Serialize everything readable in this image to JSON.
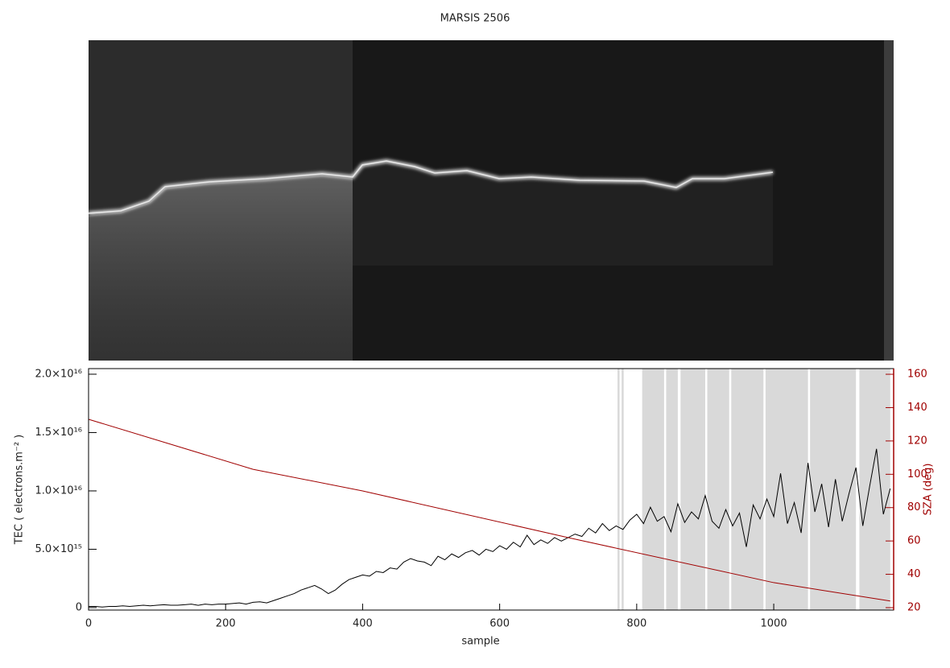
{
  "chart_data": {
    "type": "line",
    "title": "MARSIS 2506",
    "xlabel": "sample",
    "ylabel": "TEC ( electrons.m⁻² )",
    "y2label": "SZA (deg)",
    "xlim": [
      0,
      1175
    ],
    "xticks": [
      0,
      200,
      400,
      600,
      800,
      1000
    ],
    "ylim": [
      -210000000000000.0,
      2.048e+16
    ],
    "yticks": [
      0,
      {
        "value": 5000000000000000.0,
        "label": "5.0×10¹⁵"
      },
      {
        "value": 1e+16,
        "label": "1.0×10¹⁶"
      },
      {
        "value": 1.5e+16,
        "label": "1.5×10¹⁶"
      },
      {
        "value": 2e+16,
        "label": "2.0×10¹⁶"
      }
    ],
    "y2lim": [
      18.55,
      163.4
    ],
    "y2ticks": [
      20,
      40,
      60,
      80,
      100,
      120,
      140,
      160
    ],
    "shade_color": "#d9d9d9",
    "shaded_ranges": [
      [
        772,
        775
      ],
      [
        778,
        781
      ],
      [
        808,
        840
      ],
      [
        843,
        860
      ],
      [
        864,
        900
      ],
      [
        903,
        935
      ],
      [
        938,
        985
      ],
      [
        988,
        1050
      ],
      [
        1053,
        1120
      ],
      [
        1125,
        1170
      ]
    ],
    "series": [
      {
        "color": "#000000",
        "x": [
          0,
          10,
          20,
          30,
          40,
          50,
          60,
          70,
          80,
          90,
          100,
          110,
          120,
          130,
          140,
          150,
          160,
          170,
          180,
          190,
          200,
          210,
          220,
          230,
          240,
          250,
          260,
          270,
          280,
          290,
          300,
          310,
          320,
          330,
          340,
          350,
          360,
          370,
          380,
          390,
          400,
          410,
          420,
          430,
          440,
          450,
          460,
          470,
          480,
          490,
          500,
          510,
          520,
          530,
          540,
          550,
          560,
          570,
          580,
          590,
          600,
          610,
          620,
          630,
          640,
          650,
          660,
          670,
          680,
          690,
          700,
          710,
          720,
          730,
          740,
          750,
          760,
          770,
          780,
          790,
          800,
          810,
          820,
          830,
          840,
          850,
          860,
          870,
          880,
          890,
          900,
          910,
          920,
          930,
          940,
          950,
          960,
          970,
          980,
          990,
          1000,
          1010,
          1020,
          1030,
          1040,
          1050,
          1060,
          1070,
          1080,
          1090,
          1100,
          1110,
          1120,
          1130,
          1140,
          1150,
          1160,
          1170
        ],
        "values": [
          100000000000000.0,
          100000000000000.0,
          50000000000000.0,
          100000000000000.0,
          100000000000000.0,
          150000000000000.0,
          100000000000000.0,
          150000000000000.0,
          200000000000000.0,
          150000000000000.0,
          200000000000000.0,
          250000000000000.0,
          200000000000000.0,
          200000000000000.0,
          250000000000000.0,
          300000000000000.0,
          200000000000000.0,
          300000000000000.0,
          250000000000000.0,
          300000000000000.0,
          300000000000000.0,
          350000000000000.0,
          400000000000000.0,
          300000000000000.0,
          450000000000000.0,
          500000000000000.0,
          400000000000000.0,
          600000000000000.0,
          800000000000000.0,
          1000000000000000.0,
          1200000000000000.0,
          1500000000000000.0,
          1700000000000000.0,
          1900000000000000.0,
          1600000000000000.0,
          1200000000000000.0,
          1500000000000000.0,
          2000000000000000.0,
          2400000000000000.0,
          2600000000000000.0,
          2800000000000000.0,
          2700000000000000.0,
          3100000000000000.0,
          3000000000000000.0,
          3400000000000000.0,
          3300000000000000.0,
          3900000000000000.0,
          4200000000000000.0,
          4000000000000000.0,
          3900000000000000.0,
          3600000000000000.0,
          4400000000000000.0,
          4100000000000000.0,
          4600000000000000.0,
          4300000000000000.0,
          4700000000000000.0,
          4900000000000000.0,
          4500000000000000.0,
          5000000000000000.0,
          4800000000000000.0,
          5300000000000000.0,
          5000000000000000.0,
          5600000000000000.0,
          5200000000000000.0,
          6200000000000000.0,
          5400000000000000.0,
          5800000000000000.0,
          5500000000000000.0,
          6000000000000000.0,
          5700000000000000.0,
          6000000000000000.0,
          6300000000000000.0,
          6100000000000000.0,
          6800000000000000.0,
          6400000000000000.0,
          7200000000000000.0,
          6600000000000000.0,
          7000000000000000.0,
          6700000000000000.0,
          7500000000000000.0,
          8000000000000000.0,
          7200000000000000.0,
          8600000000000000.0,
          7400000000000000.0,
          7800000000000000.0,
          6500000000000000.0,
          8900000000000000.0,
          7300000000000000.0,
          8200000000000000.0,
          7600000000000000.0,
          9600000000000000.0,
          7400000000000000.0,
          6800000000000000.0,
          8400000000000000.0,
          7000000000000000.0,
          8100000000000000.0,
          5200000000000000.0,
          8800000000000000.0,
          7600000000000000.0,
          9300000000000000.0,
          7800000000000000.0,
          1.15e+16,
          7200000000000000.0,
          9000000000000000.0,
          6400000000000000.0,
          1.24e+16,
          8200000000000000.0,
          1.06e+16,
          6900000000000000.0,
          1.1e+16,
          7400000000000000.0,
          9800000000000000.0,
          1.2e+16,
          7000000000000000.0,
          1.04e+16,
          1.36e+16,
          8000000000000000.0,
          1.02e+16
        ]
      },
      {
        "color": "#a00000",
        "axis": "y2",
        "x": [
          0,
          240,
          400,
          700,
          1000,
          1170
        ],
        "values": [
          133,
          103,
          90,
          62,
          35,
          24
        ]
      }
    ]
  }
}
